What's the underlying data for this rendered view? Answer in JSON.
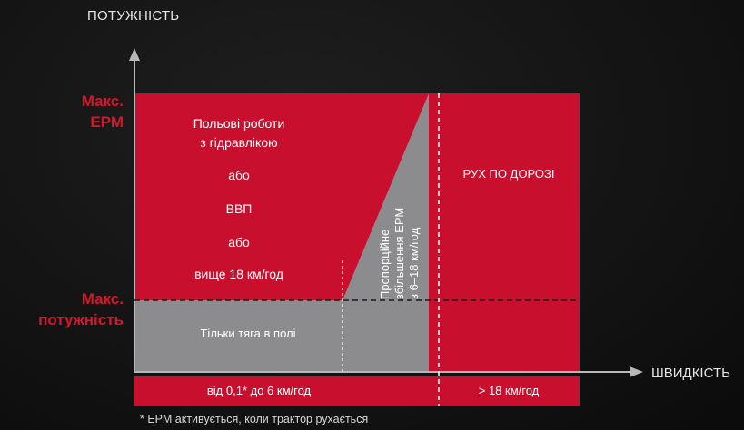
{
  "axes": {
    "y_title": "ПОТУЖНІСТЬ",
    "x_title": "ШВИДКІСТЬ"
  },
  "levels": {
    "max_epm": [
      "Макс.",
      "ЕРМ"
    ],
    "max_power": [
      "Макс.",
      "потужність"
    ]
  },
  "zones": {
    "field_work": {
      "line1": "Польові роботи",
      "line2": "з гідравлікою",
      "or1": "або",
      "pto": "ВВП",
      "or2": "або",
      "above": "вище 18 км/год"
    },
    "traction_only": "Тільки тяга в полі",
    "proportional": [
      "Пропорційне",
      "збільшення ЕРМ",
      "з 6–18 км/год"
    ],
    "road": "РУХ ПО ДОРОЗІ"
  },
  "speed_bands": {
    "low": "від 0,1* до 6 км/год",
    "high": "> 18 км/год"
  },
  "footnote": "* ЕРМ активується, коли трактор рухається",
  "colors": {
    "red": "#c8102e",
    "gray": "#8c8c8e",
    "background": "#141414",
    "accent_text": "#d1192e"
  }
}
